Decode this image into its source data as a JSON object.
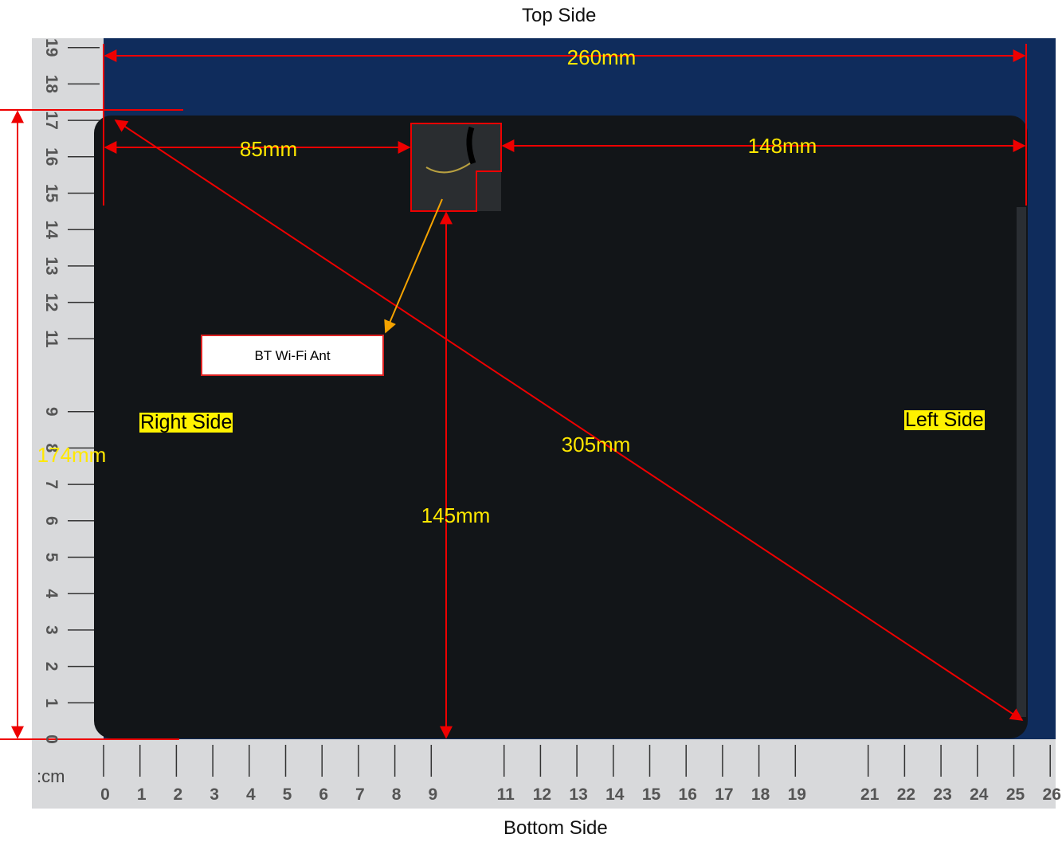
{
  "header": {
    "top": "Top Side",
    "bottom": "Bottom Side"
  },
  "sides": {
    "right": "Right Side",
    "left": "Left Side"
  },
  "dimensions": {
    "width": "260mm",
    "antenna_to_right": "85mm",
    "antenna_to_left": "148mm",
    "height": "174mm",
    "antenna_to_bottom": "145mm",
    "diagonal": "305mm"
  },
  "antenna": {
    "label": "BT Wi-Fi Ant"
  },
  "ruler": {
    "unit": ":cm",
    "bottom": [
      0,
      1,
      2,
      3,
      4,
      5,
      6,
      7,
      8,
      9,
      11,
      12,
      13,
      14,
      15,
      16,
      17,
      18,
      19,
      21,
      22,
      23,
      24,
      25,
      26
    ],
    "left": [
      0,
      1,
      2,
      3,
      4,
      5,
      6,
      7,
      8,
      9,
      11,
      12,
      13,
      14,
      15,
      16,
      17,
      18,
      19
    ]
  }
}
